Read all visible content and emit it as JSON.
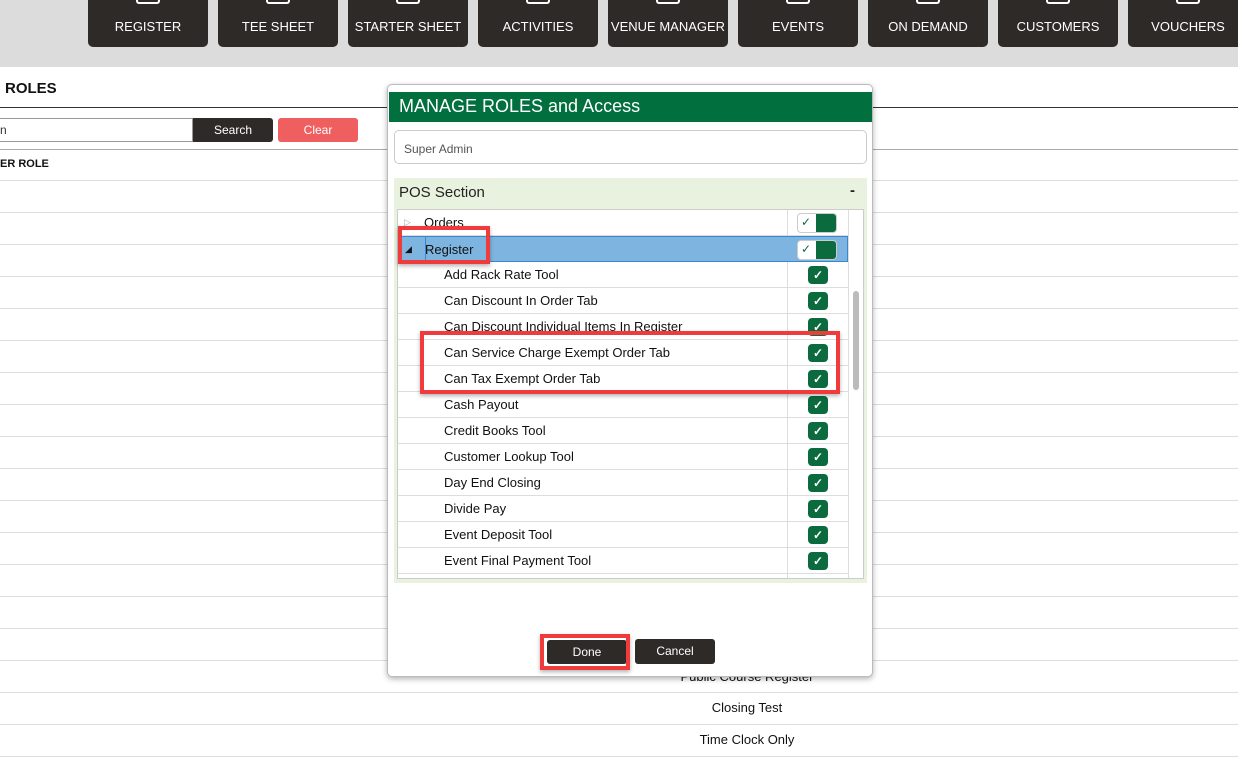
{
  "nav": [
    "REGISTER",
    "TEE SHEET",
    "STARTER SHEET",
    "ACTIVITIES",
    "VENUE MANAGER",
    "EVENTS",
    "ON DEMAND",
    "CUSTOMERS",
    "VOUCHERS"
  ],
  "page": {
    "title": "ROLES",
    "search_value": "n",
    "search_label": "Search",
    "clear_label": "Clear",
    "column_header": "ER ROLE",
    "rows": [
      "Public Course Register",
      "Closing Test",
      "Time Clock Only"
    ]
  },
  "modal": {
    "title": "MANAGE ROLES and Access",
    "role_value": "Super Admin",
    "section": "POS Section",
    "collapse": "-",
    "tree": [
      {
        "label": "Orders",
        "expanded": false,
        "checked": true
      },
      {
        "label": "Register",
        "expanded": true,
        "selected": true,
        "checked": true
      }
    ],
    "items": [
      "Add Rack Rate Tool",
      "Can Discount In Order Tab",
      "Can Discount Individual Items In Register",
      "Can Service Charge Exempt Order Tab",
      "Can Tax Exempt Order Tab",
      "Cash Payout",
      "Credit Books Tool",
      "Customer Lookup Tool",
      "Day End Closing",
      "Divide Pay",
      "Event Deposit Tool",
      "Event Final Payment Tool"
    ],
    "done_label": "Done",
    "cancel_label": "Cancel"
  },
  "colors": {
    "brand_green": "#02703e",
    "highlight": "#ef3b3b",
    "selected_row": "#7db4e0"
  }
}
